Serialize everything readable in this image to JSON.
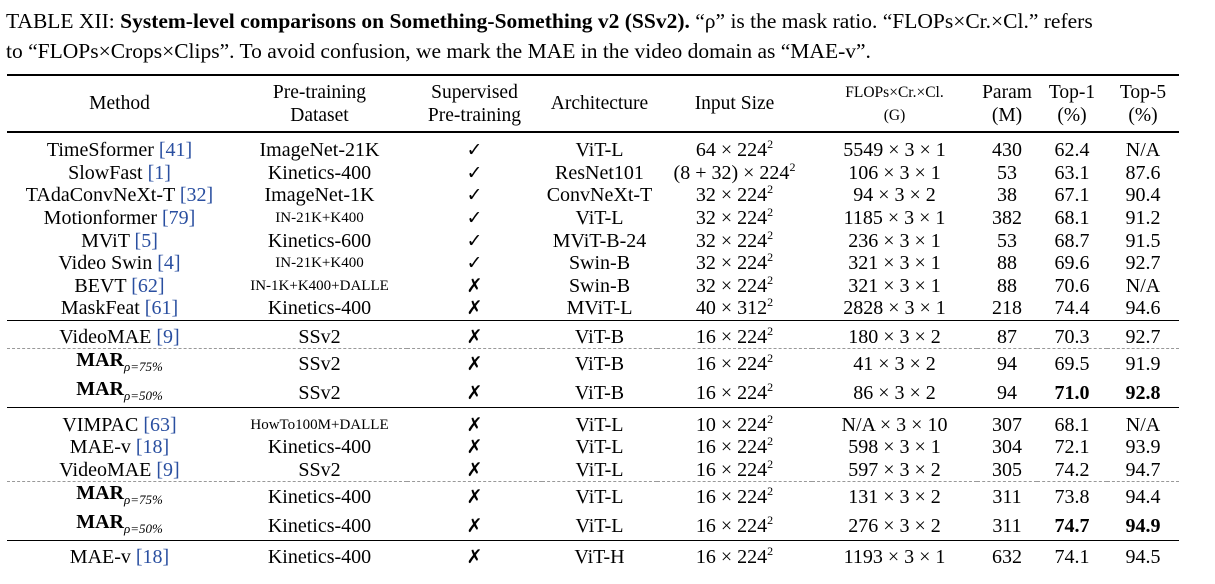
{
  "caption": {
    "label": "TABLE XII:",
    "bold_title": "System-level comparisons on Something-Something v2 (SSv2).",
    "rest_line1": " “ρ” is the mask ratio. “FLOPs×Cr.×Cl.” refers",
    "line2": "to “FLOPs×Crops×Clips”. To avoid confusion, we mark the MAE in the video domain as “MAE-v”."
  },
  "headers": {
    "method": "Method",
    "dataset_l1": "Pre-training",
    "dataset_l2": "Dataset",
    "supervised_l1": "Supervised",
    "supervised_l2": "Pre-training",
    "architecture": "Architecture",
    "input_size": "Input Size",
    "flops_l1": "FLOPs×Cr.×Cl.",
    "flops_l2": "(G)",
    "param_l1": "Param",
    "param_l2": "(M)",
    "top1_l1": "Top-1",
    "top1_l2": "(%)",
    "top5_l1": "Top-5",
    "top5_l2": "(%)"
  },
  "symbols": {
    "check": "✓",
    "cross": "✗"
  },
  "rows": [
    {
      "method": "TimeSformer ",
      "cite": "[41]",
      "dataset": "ImageNet-21K",
      "sup": "✓",
      "arch": "ViT-L",
      "input": "64 × 224",
      "exp": "2",
      "flops": "5549 × 3 × 1",
      "param": "430",
      "top1": "62.4",
      "top5": "N/A"
    },
    {
      "method": "SlowFast ",
      "cite": "[1]",
      "dataset": "Kinetics-400",
      "sup": "✓",
      "arch": "ResNet101",
      "input": "(8 + 32) × 224",
      "exp": "2",
      "flops": "106 × 3 × 1",
      "param": "53",
      "top1": "63.1",
      "top5": "87.6"
    },
    {
      "method": "TAdaConvNeXt-T ",
      "cite": "[32]",
      "dataset": "ImageNet-1K",
      "sup": "✓",
      "arch": "ConvNeXt-T",
      "input": "32 × 224",
      "exp": "2",
      "flops": "94 × 3 × 2",
      "param": "38",
      "top1": "67.1",
      "top5": "90.4"
    },
    {
      "method": "Motionformer ",
      "cite": "[79]",
      "dataset": "IN-21K+K400",
      "sup": "✓",
      "arch": "ViT-L",
      "input": "32 × 224",
      "exp": "2",
      "flops": "1185 × 3 × 1",
      "param": "382",
      "top1": "68.1",
      "top5": "91.2"
    },
    {
      "method": "MViT ",
      "cite": "[5]",
      "dataset": "Kinetics-600",
      "sup": "✓",
      "arch": "MViT-B-24",
      "input": "32 × 224",
      "exp": "2",
      "flops": "236 × 3 × 1",
      "param": "53",
      "top1": "68.7",
      "top5": "91.5"
    },
    {
      "method": "Video Swin ",
      "cite": "[4]",
      "dataset": "IN-21K+K400",
      "sup": "✓",
      "arch": "Swin-B",
      "input": "32 × 224",
      "exp": "2",
      "flops": "321 × 3 × 1",
      "param": "88",
      "top1": "69.6",
      "top5": "92.7"
    },
    {
      "method": "BEVT ",
      "cite": "[62]",
      "dataset": "IN-1K+K400+DALLE",
      "sup": "✗",
      "arch": "Swin-B",
      "input": "32 × 224",
      "exp": "2",
      "flops": "321 × 3 × 1",
      "param": "88",
      "top1": "70.6",
      "top5": "N/A"
    },
    {
      "method": "MaskFeat ",
      "cite": "[61]",
      "dataset": "Kinetics-400",
      "sup": "✗",
      "arch": "MViT-L",
      "input": "40 × 312",
      "exp": "2",
      "flops": "2828 × 3 × 1",
      "param": "218",
      "top1": "74.4",
      "top5": "94.6"
    },
    {
      "method": "VideoMAE ",
      "cite": "[9]",
      "dataset": "SSv2",
      "sup": "✗",
      "arch": "ViT-B",
      "input": "16 × 224",
      "exp": "2",
      "flops": "180 × 3 × 2",
      "param": "87",
      "top1": "70.3",
      "top5": "92.7"
    },
    {
      "method": "MAR",
      "sub": "ρ=75%",
      "dataset": "SSv2",
      "sup": "✗",
      "arch": "ViT-B",
      "input": "16 × 224",
      "exp": "2",
      "flops": "41 × 3 × 2",
      "param": "94",
      "top1": "69.5",
      "top5": "91.9"
    },
    {
      "method": "MAR",
      "sub": "ρ=50%",
      "dataset": "SSv2",
      "sup": "✗",
      "arch": "ViT-B",
      "input": "16 × 224",
      "exp": "2",
      "flops": "86 × 3 × 2",
      "param": "94",
      "top1": "71.0",
      "top5": "92.8"
    },
    {
      "method": "VIMPAC ",
      "cite": "[63]",
      "dataset": "HowTo100M+DALLE",
      "sup": "✗",
      "arch": "ViT-L",
      "input": "10 × 224",
      "exp": "2",
      "flops": "N/A × 3 × 10",
      "param": "307",
      "top1": "68.1",
      "top5": "N/A"
    },
    {
      "method": "MAE-v ",
      "cite": "[18]",
      "dataset": "Kinetics-400",
      "sup": "✗",
      "arch": "ViT-L",
      "input": "16 × 224",
      "exp": "2",
      "flops": "598 × 3 × 1",
      "param": "304",
      "top1": "72.1",
      "top5": "93.9"
    },
    {
      "method": "VideoMAE ",
      "cite": "[9]",
      "dataset": "SSv2",
      "sup": "✗",
      "arch": "ViT-L",
      "input": "16 × 224",
      "exp": "2",
      "flops": "597 × 3 × 2",
      "param": "305",
      "top1": "74.2",
      "top5": "94.7"
    },
    {
      "method": "MAR",
      "sub": "ρ=75%",
      "dataset": "Kinetics-400",
      "sup": "✗",
      "arch": "ViT-L",
      "input": "16 × 224",
      "exp": "2",
      "flops": "131 × 3 × 2",
      "param": "311",
      "top1": "73.8",
      "top5": "94.4"
    },
    {
      "method": "MAR",
      "sub": "ρ=50%",
      "dataset": "Kinetics-400",
      "sup": "✗",
      "arch": "ViT-L",
      "input": "16 × 224",
      "exp": "2",
      "flops": "276 × 3 × 2",
      "param": "311",
      "top1": "74.7",
      "top5": "94.9"
    },
    {
      "method": "MAE-v ",
      "cite": "[18]",
      "dataset": "Kinetics-400",
      "sup": "✗",
      "arch": "ViT-H",
      "input": "16 × 224",
      "exp": "2",
      "flops": "1193 × 3 × 1",
      "param": "632",
      "top1": "74.1",
      "top5": "94.5"
    }
  ]
}
